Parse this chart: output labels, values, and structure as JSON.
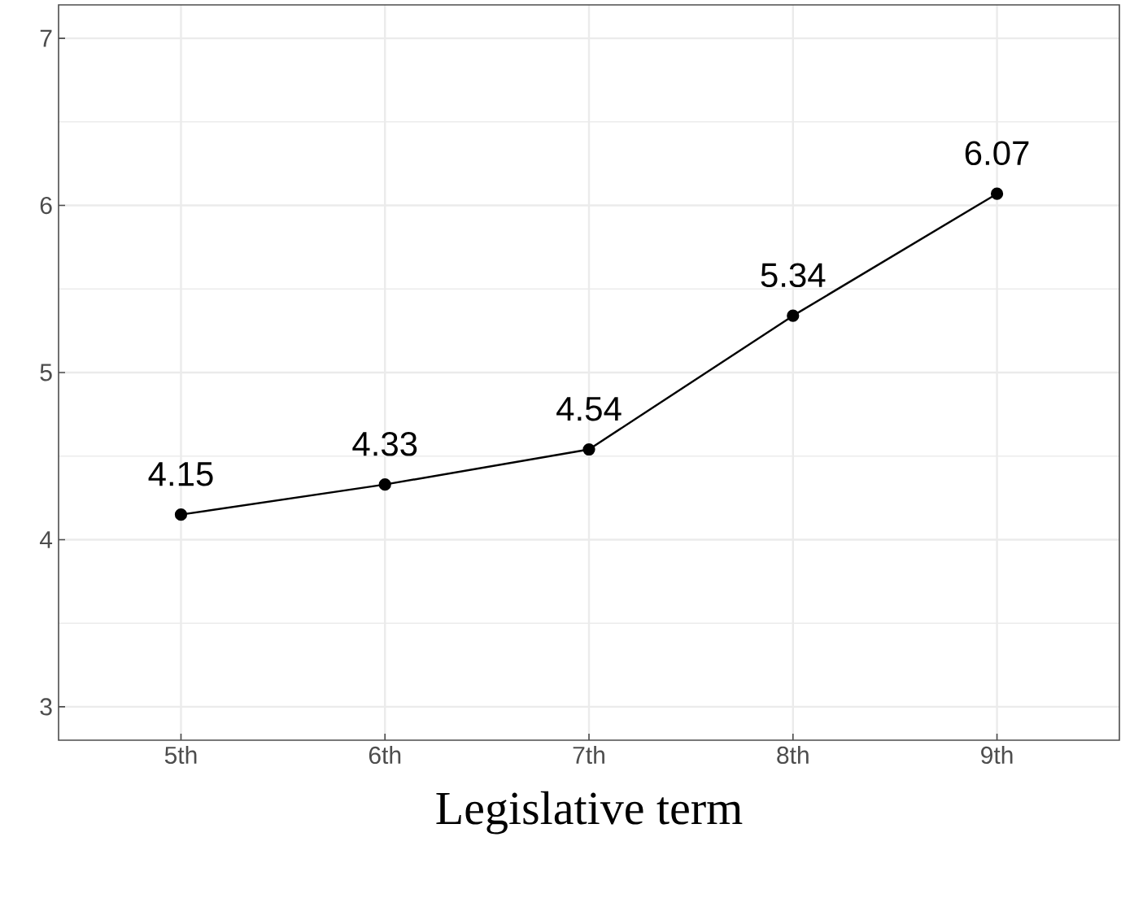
{
  "chart_data": {
    "type": "line",
    "xlabel": "Legislative term",
    "categories": [
      "5th",
      "6th",
      "7th",
      "8th",
      "9th"
    ],
    "values": [
      4.15,
      4.33,
      4.54,
      5.34,
      6.07
    ],
    "color": "#000000",
    "marker": "circle",
    "line_style": "solid",
    "data_labels": true,
    "grid": true,
    "ylim": [
      2.8,
      7.2
    ],
    "yticks": [
      3,
      4,
      5,
      6,
      7
    ]
  }
}
